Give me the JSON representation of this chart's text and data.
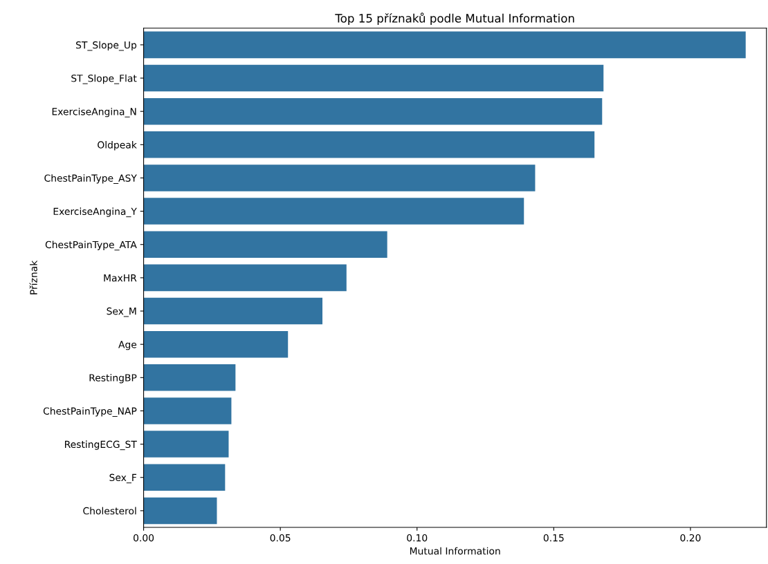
{
  "chart_data": {
    "type": "bar",
    "orientation": "horizontal",
    "title": "Top 15 příznaků podle Mutual Information",
    "xlabel": "Mutual Information",
    "ylabel": "Příznak",
    "categories": [
      "ST_Slope_Up",
      "ST_Slope_Flat",
      "ExerciseAngina_N",
      "Oldpeak",
      "ChestPainType_ASY",
      "ExerciseAngina_Y",
      "ChestPainType_ATA",
      "MaxHR",
      "Sex_M",
      "Age",
      "RestingBP",
      "ChestPainType_NAP",
      "RestingECG_ST",
      "Sex_F",
      "Cholesterol"
    ],
    "values": [
      0.2202,
      0.1682,
      0.1677,
      0.1649,
      0.1432,
      0.1391,
      0.0891,
      0.0742,
      0.0654,
      0.0528,
      0.0336,
      0.0321,
      0.0311,
      0.0298,
      0.0268
    ],
    "color": "#3274a1",
    "xlim": [
      0,
      0.2278
    ],
    "xticks": [
      {
        "value": 0,
        "label": "0.00"
      },
      {
        "value": 0.05,
        "label": "0.05"
      },
      {
        "value": 0.1,
        "label": "0.10"
      },
      {
        "value": 0.15,
        "label": "0.15"
      },
      {
        "value": 0.2,
        "label": "0.20"
      }
    ]
  }
}
